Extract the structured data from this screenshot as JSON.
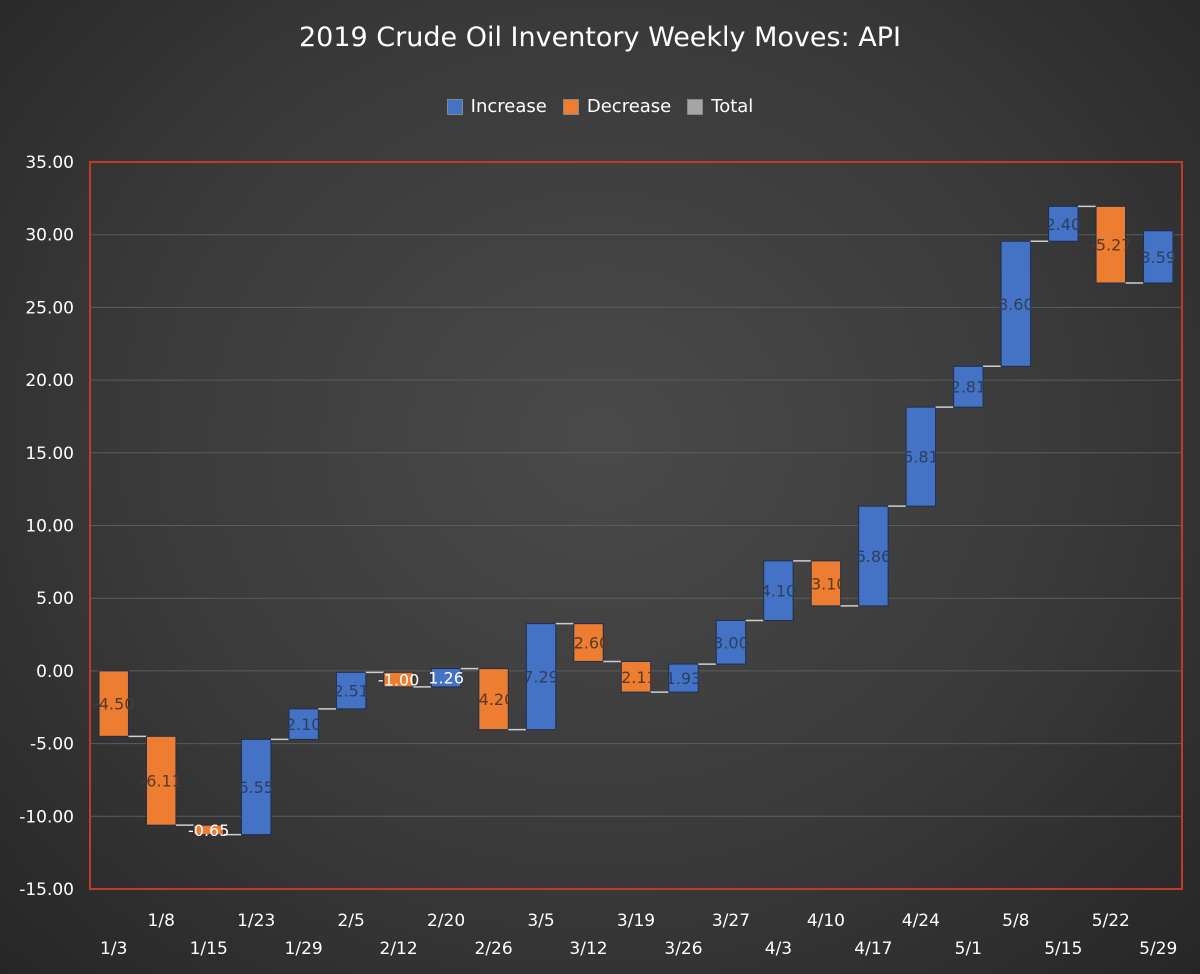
{
  "colors": {
    "increase": "#4472c4",
    "decrease": "#ed7d31",
    "total": "#a5a5a5",
    "label_increase": "#2f3e5c",
    "label_decrease": "#5a3a22",
    "label_white": "#ffffff",
    "plot_border": "#c0392b",
    "gridline": "#5c5c5c",
    "connector": "#cfcfcf"
  },
  "legend": {
    "increase": "Increase",
    "decrease": "Decrease",
    "total": "Total"
  },
  "chart_data": {
    "type": "waterfall",
    "title": "2019 Crude Oil Inventory Weekly Moves: API",
    "xlabel": "",
    "ylabel": "",
    "ylim": [
      -15,
      35
    ],
    "yticks": [
      35,
      30,
      25,
      20,
      15,
      10,
      5,
      0,
      -5,
      -10,
      -15
    ],
    "ytick_labels": [
      "35.00",
      "30.00",
      "25.00",
      "20.00",
      "15.00",
      "10.00",
      "5.00",
      "0.00",
      "-5.00",
      "-10.00",
      "-15.00"
    ],
    "legend_position": "top",
    "grid": true,
    "categories": [
      "1/3",
      "1/8",
      "1/15",
      "1/23",
      "1/29",
      "2/5",
      "2/12",
      "2/20",
      "2/26",
      "3/5",
      "3/12",
      "3/19",
      "3/26",
      "3/27",
      "4/3",
      "4/10",
      "4/17",
      "4/24",
      "5/1",
      "5/8",
      "5/15",
      "5/22",
      "5/29"
    ],
    "values": [
      -4.5,
      -6.11,
      -0.65,
      6.55,
      2.1,
      2.51,
      -1.0,
      1.26,
      -4.2,
      7.29,
      -2.6,
      -2.11,
      1.93,
      3.0,
      4.1,
      -3.1,
      6.86,
      6.81,
      2.81,
      8.6,
      2.4,
      -5.27,
      3.59
    ],
    "value_labels": [
      "-4.50",
      "-6.11",
      "-0.65",
      "6.55",
      "2.10",
      "2.51",
      "-1.00",
      "1.26",
      "-4.20",
      "7.29",
      "-2.60",
      "-2.11",
      "1.93",
      "3.00",
      "4.10",
      "-3.10",
      "6.86",
      "6.81",
      "2.81",
      "8.60",
      "2.40",
      "-5.27",
      "3.59"
    ]
  }
}
